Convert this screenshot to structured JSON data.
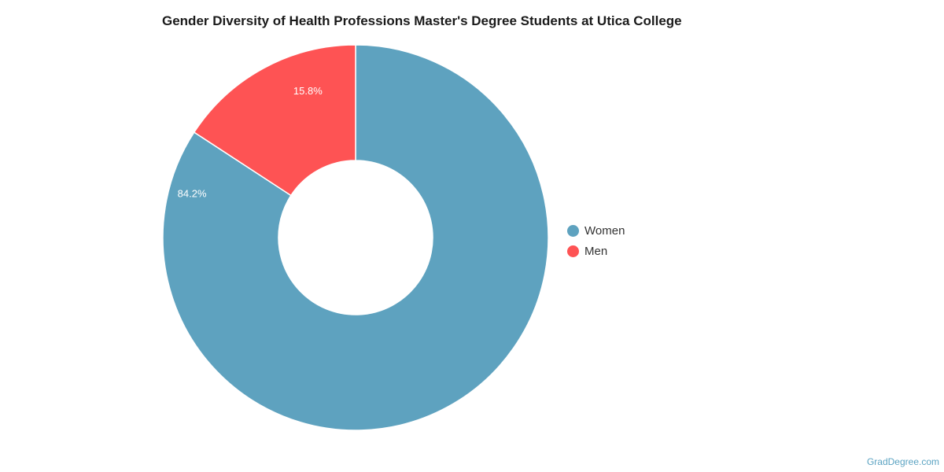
{
  "chart_data": {
    "type": "pie",
    "title": "Gender Diversity of Health Professions Master's Degree Students at Utica College",
    "categories": [
      "Women",
      "Men"
    ],
    "values": [
      84.2,
      15.8
    ],
    "labels": [
      "84.2%",
      "15.8%"
    ],
    "colors": [
      "#5ea2bf",
      "#fe5354"
    ],
    "donut": true,
    "legend_position": "right"
  },
  "footer": {
    "watermark": "GradDegree.com"
  }
}
